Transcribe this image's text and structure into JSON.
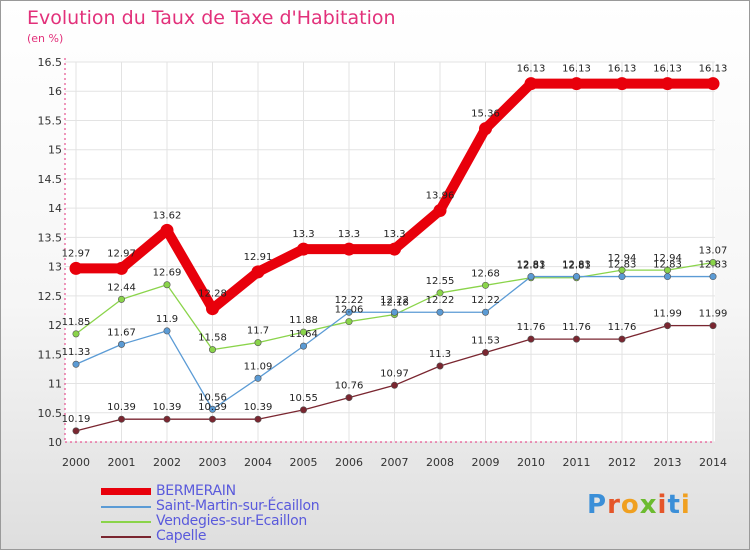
{
  "header": {
    "title": "Evolution du Taux de Taxe d'Habitation",
    "unit": "(en %)"
  },
  "logo": {
    "text": "Proxiti"
  },
  "chart_data": {
    "type": "line",
    "title": "Evolution du Taux de Taxe d'Habitation",
    "ylabel": "(en %)",
    "x": [
      2000,
      2001,
      2002,
      2003,
      2004,
      2005,
      2006,
      2007,
      2008,
      2009,
      2010,
      2011,
      2012,
      2013,
      2014
    ],
    "ylim": [
      10,
      16.5
    ],
    "yticks": [
      10,
      10.5,
      11,
      11.5,
      12,
      12.5,
      13,
      13.5,
      14,
      14.5,
      15,
      15.5,
      16,
      16.5
    ],
    "legend_position": "bottom-left",
    "series": [
      {
        "name": "BERMERAIN",
        "color": "#e8000b",
        "values": [
          12.97,
          12.97,
          13.62,
          12.28,
          12.91,
          13.3,
          13.3,
          13.3,
          13.96,
          15.36,
          16.13,
          16.13,
          16.13,
          16.13,
          16.13
        ]
      },
      {
        "name": "Saint-Martin-sur-Écaillon",
        "color": "#5b9bd5",
        "values": [
          11.33,
          11.67,
          11.9,
          10.56,
          11.09,
          11.64,
          12.22,
          12.22,
          12.22,
          12.22,
          12.83,
          12.83,
          12.83,
          12.83,
          12.83
        ]
      },
      {
        "name": "Vendegies-sur-Ecaillon",
        "color": "#8ad44a",
        "values": [
          11.85,
          12.44,
          12.69,
          11.58,
          11.7,
          11.88,
          12.06,
          12.18,
          12.55,
          12.68,
          12.81,
          12.81,
          12.94,
          12.94,
          13.07
        ]
      },
      {
        "name": "Capelle",
        "color": "#7a2630",
        "values": [
          10.19,
          10.39,
          10.39,
          10.39,
          10.39,
          10.55,
          10.76,
          10.97,
          11.3,
          11.53,
          11.76,
          11.76,
          11.76,
          11.99,
          11.99
        ]
      }
    ]
  }
}
